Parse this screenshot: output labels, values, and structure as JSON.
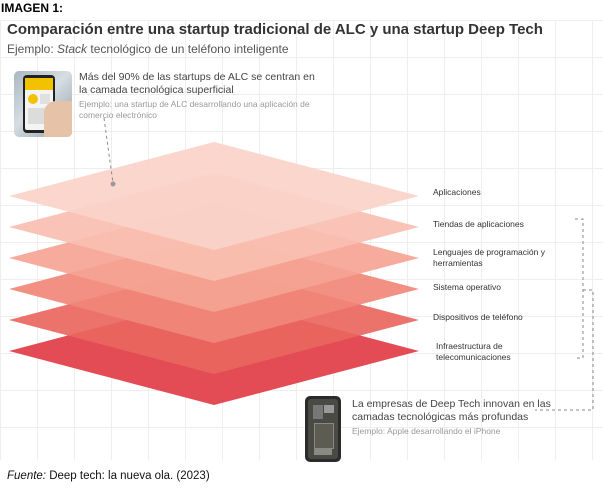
{
  "header": {
    "image_label": "IMAGEN 1:",
    "title": "Comparación entre una startup tradicional de ALC y una startup Deep Tech",
    "subtitle_prefix": "Ejemplo: ",
    "subtitle_italic": "Stack",
    "subtitle_suffix": " tecnológico de un teléfono inteligente"
  },
  "top_note": {
    "main": "Más del 90% de las startups de ALC se centran en la camada tecnológica superficial",
    "example": "Ejemplo: una startup de ALC desarrollando una aplicación de comercio electrónico"
  },
  "layers": [
    {
      "label": "Aplicaciones",
      "color": "#fad3c8"
    },
    {
      "label": "Tiendas de aplicaciones",
      "color": "#f8bfb1"
    },
    {
      "label": "Lenguajes de programación y herramientas",
      "color": "#f5a494"
    },
    {
      "label": "Sistema operativo",
      "color": "#f08778"
    },
    {
      "label": "Dispositivos de teléfono",
      "color": "#ea6660"
    },
    {
      "label": "Infraestructura de telecomunicaciones",
      "color": "#e13c47"
    }
  ],
  "bottom_note": {
    "main": "La empresas de Deep Tech innovan en las camadas tecnológicas más profundas",
    "example": "Ejemplo: Apple desarrollando el iPhone"
  },
  "source": {
    "prefix": "Fuente:",
    "text": " Deep tech: la nueva ola. (2023)"
  },
  "icons": {
    "top_image": "phone-shopping-app-image",
    "bottom_image": "iphone-internals-image"
  }
}
